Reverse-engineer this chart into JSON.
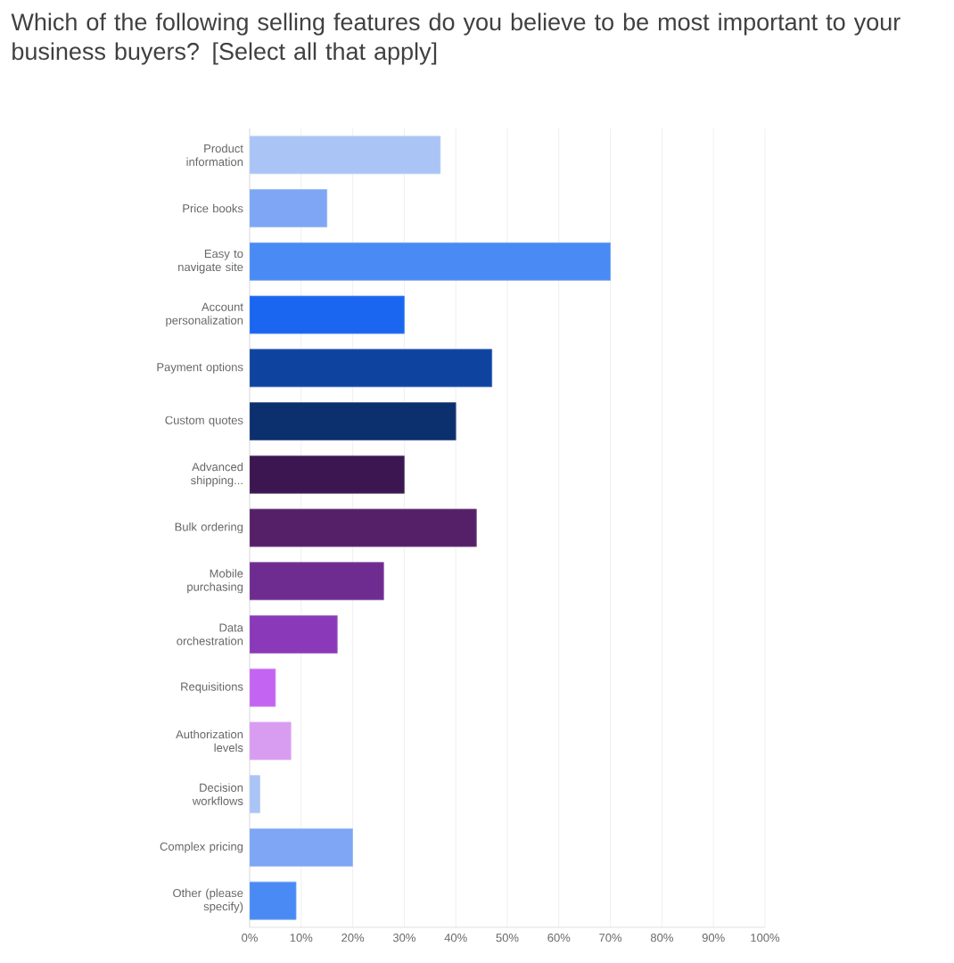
{
  "chart_data": {
    "type": "bar",
    "orientation": "horizontal",
    "title": "Which of the following selling features do you believe to be most important to your business buyers? [Select all that apply]",
    "categories": [
      "Product information",
      "Price books",
      "Easy to navigate site",
      "Account personalization",
      "Payment options",
      "Custom quotes",
      "Advanced shipping...",
      "Bulk ordering",
      "Mobile purchasing",
      "Data orchestration",
      "Requisitions",
      "Authorization levels",
      "Decision workflows",
      "Complex pricing",
      "Other (please specify)"
    ],
    "values": [
      37,
      15,
      70,
      30,
      47,
      40,
      30,
      44,
      26,
      17,
      5,
      8,
      2,
      20,
      9
    ],
    "colors": [
      "#a9c4f5",
      "#7ea6f4",
      "#4a8af4",
      "#1a66f0",
      "#0e44a0",
      "#0c2f6e",
      "#3b1650",
      "#552068",
      "#6e2c91",
      "#8a3ab8",
      "#c464f2",
      "#d89cf0",
      "#aac4f5",
      "#7ea6f4",
      "#4a8af4"
    ],
    "xlim": [
      0,
      100
    ],
    "xticks": [
      {
        "value": 0,
        "label": "0%"
      },
      {
        "value": 10,
        "label": "10%"
      },
      {
        "value": 20,
        "label": "20%"
      },
      {
        "value": 30,
        "label": "30%"
      },
      {
        "value": 40,
        "label": "40%"
      },
      {
        "value": 50,
        "label": "50%"
      },
      {
        "value": 60,
        "label": "60%"
      },
      {
        "value": 70,
        "label": "70%"
      },
      {
        "value": 80,
        "label": "80%"
      },
      {
        "value": 90,
        "label": "90%"
      },
      {
        "value": 100,
        "label": "100%"
      }
    ],
    "grid": "x"
  }
}
